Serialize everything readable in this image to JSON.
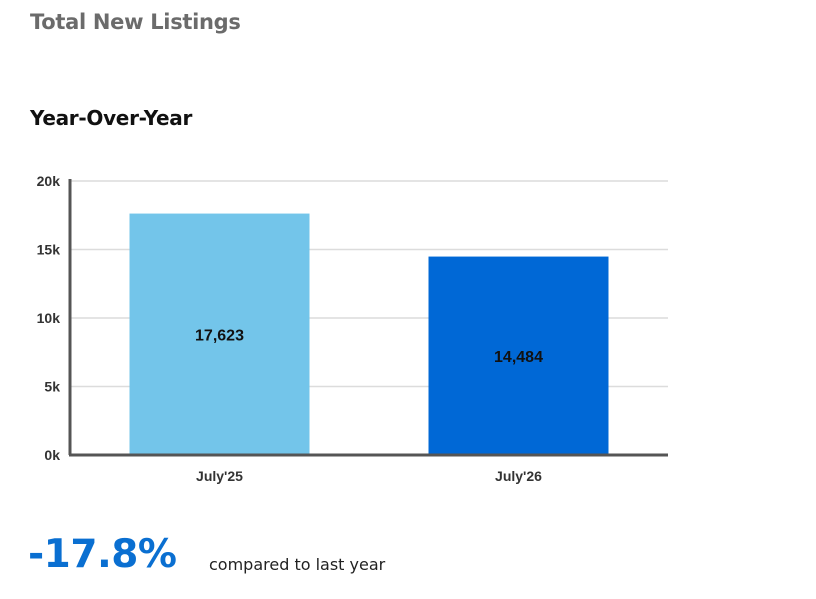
{
  "header": {
    "title": "Total New Listings"
  },
  "chart_data": {
    "type": "bar",
    "title": "Year-Over-Year",
    "xlabel": "",
    "ylabel": "",
    "categories": [
      "July'25",
      "July'26"
    ],
    "values": [
      17623,
      14484
    ],
    "value_labels": [
      "17,623",
      "14,484"
    ],
    "bar_colors": [
      "#73c5ea",
      "#0068d6"
    ],
    "ylim": [
      0,
      20000
    ],
    "yticks": [
      0,
      5000,
      10000,
      15000,
      20000
    ],
    "ytick_labels": [
      "0k",
      "5k",
      "10k",
      "15k",
      "20k"
    ],
    "grid": true,
    "legend": "none"
  },
  "summary": {
    "change": "-17.8%",
    "caption": "compared to last year",
    "change_color": "#0a6fd1"
  }
}
